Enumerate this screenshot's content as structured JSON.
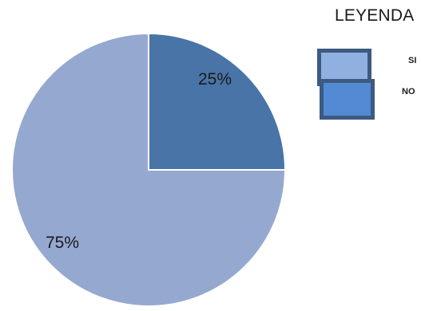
{
  "chart_data": {
    "type": "pie",
    "categories": [
      "SI",
      "NO"
    ],
    "values": [
      75,
      25
    ],
    "slice_labels": [
      "75%",
      "25%"
    ],
    "colors": [
      "#95a8d0",
      "#4874a7"
    ],
    "legend": {
      "title": "LEYENDA",
      "placement": "top-right",
      "items": [
        {
          "label": "SI",
          "color": "#8fb0e0"
        },
        {
          "label": "NO",
          "color": "#5489d4"
        }
      ]
    }
  }
}
